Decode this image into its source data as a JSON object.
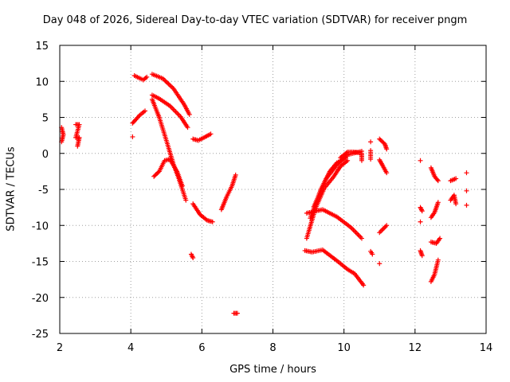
{
  "chart_data": {
    "type": "scatter",
    "title": "Day 048 of 2026, Sidereal Day-to-day VTEC variation (SDTVAR) for receiver pngm",
    "xlabel": "GPS time / hours",
    "ylabel": "SDTVAR / TECUs",
    "xlim": [
      2,
      14
    ],
    "ylim": [
      -25,
      15
    ],
    "xticks": [
      "2",
      "4",
      "6",
      "8",
      "10",
      "12",
      "14"
    ],
    "yticks": [
      "15",
      "10",
      "5",
      "0",
      "-5",
      "-10",
      "-15",
      "-20",
      "-25"
    ],
    "grid": true,
    "marker": "+",
    "color": "#ff0000",
    "segments": [
      [
        [
          2.05,
          3.6
        ],
        [
          2.1,
          2.6
        ],
        [
          2.05,
          1.6
        ]
      ],
      [
        [
          2.45,
          4.0
        ],
        [
          2.55,
          4.0
        ],
        [
          2.45,
          2.2
        ],
        [
          2.55,
          2.2
        ],
        [
          2.5,
          1.0
        ]
      ],
      [
        [
          4.05,
          2.3
        ]
      ],
      [
        [
          4.05,
          4.2
        ],
        [
          4.25,
          5.3
        ],
        [
          4.4,
          5.9
        ]
      ],
      [
        [
          4.1,
          10.8
        ],
        [
          4.35,
          10.2
        ],
        [
          4.45,
          10.6
        ]
      ],
      [
        [
          4.6,
          11.0
        ],
        [
          4.9,
          10.4
        ],
        [
          5.2,
          9.0
        ],
        [
          5.5,
          6.8
        ],
        [
          5.65,
          5.4
        ]
      ],
      [
        [
          4.6,
          8.1
        ],
        [
          4.8,
          7.6
        ],
        [
          5.1,
          6.6
        ],
        [
          5.4,
          5.1
        ],
        [
          5.6,
          3.6
        ]
      ],
      [
        [
          4.6,
          7.5
        ],
        [
          4.8,
          5.0
        ],
        [
          5.0,
          1.8
        ],
        [
          5.2,
          -1.5
        ],
        [
          5.35,
          -3.5
        ],
        [
          5.55,
          -6.5
        ]
      ],
      [
        [
          4.65,
          -3.2
        ],
        [
          4.8,
          -2.5
        ],
        [
          4.95,
          -1.0
        ],
        [
          5.1,
          -0.8
        ],
        [
          5.3,
          -2.5
        ],
        [
          5.45,
          -4.5
        ]
      ],
      [
        [
          5.7,
          -14.0
        ],
        [
          5.75,
          -14.5
        ]
      ],
      [
        [
          5.75,
          2.0
        ],
        [
          5.9,
          1.8
        ],
        [
          6.1,
          2.3
        ],
        [
          6.25,
          2.7
        ]
      ],
      [
        [
          5.75,
          -7.0
        ],
        [
          5.95,
          -8.5
        ],
        [
          6.15,
          -9.3
        ],
        [
          6.3,
          -9.5
        ]
      ],
      [
        [
          6.55,
          -7.8
        ],
        [
          6.7,
          -6.0
        ],
        [
          6.85,
          -4.5
        ],
        [
          6.95,
          -3.0
        ]
      ],
      [
        [
          6.9,
          -22.2
        ],
        [
          7.0,
          -22.2
        ]
      ],
      [
        [
          8.9,
          -13.5
        ],
        [
          9.1,
          -13.7
        ],
        [
          9.4,
          -13.4
        ],
        [
          9.8,
          -14.9
        ],
        [
          10.1,
          -16.1
        ],
        [
          10.3,
          -16.7
        ],
        [
          10.55,
          -18.3
        ]
      ],
      [
        [
          8.95,
          -8.3
        ],
        [
          9.2,
          -8.0
        ],
        [
          9.4,
          -7.8
        ],
        [
          9.8,
          -8.8
        ],
        [
          10.2,
          -10.3
        ],
        [
          10.5,
          -11.8
        ]
      ],
      [
        [
          8.95,
          -11.8
        ],
        [
          9.2,
          -7.6
        ],
        [
          9.45,
          -4.8
        ],
        [
          9.7,
          -3.3
        ],
        [
          9.9,
          -1.8
        ],
        [
          10.1,
          -1.0
        ]
      ],
      [
        [
          9.05,
          -9.0
        ],
        [
          9.35,
          -5.0
        ],
        [
          9.6,
          -2.5
        ],
        [
          9.8,
          -1.3
        ],
        [
          10.05,
          -0.6
        ]
      ],
      [
        [
          9.15,
          -7.4
        ],
        [
          9.5,
          -3.5
        ],
        [
          9.8,
          -1.6
        ],
        [
          10.1,
          -0.2
        ],
        [
          10.5,
          0.3
        ]
      ],
      [
        [
          9.9,
          -0.6
        ],
        [
          10.1,
          0.2
        ],
        [
          10.3,
          0.2
        ],
        [
          10.5,
          0.0
        ],
        [
          10.5,
          -1.0
        ]
      ],
      [
        [
          10.75,
          1.6
        ]
      ],
      [
        [
          10.75,
          0.4
        ],
        [
          10.75,
          -0.8
        ]
      ],
      [
        [
          10.75,
          -13.6
        ],
        [
          10.8,
          -14.0
        ]
      ],
      [
        [
          11.0,
          -15.3
        ]
      ],
      [
        [
          11.0,
          2.0
        ],
        [
          11.15,
          1.3
        ],
        [
          11.2,
          0.6
        ]
      ],
      [
        [
          11.0,
          -0.9
        ],
        [
          11.1,
          -1.8
        ],
        [
          11.2,
          -2.7
        ]
      ],
      [
        [
          11.0,
          -11.0
        ],
        [
          11.2,
          -10.0
        ]
      ],
      [
        [
          12.15,
          -1.0
        ]
      ],
      [
        [
          12.15,
          -7.5
        ],
        [
          12.2,
          -8.0
        ]
      ],
      [
        [
          12.15,
          -9.5
        ]
      ],
      [
        [
          12.15,
          -13.5
        ],
        [
          12.2,
          -14.2
        ]
      ],
      [
        [
          12.45,
          -2.0
        ],
        [
          12.55,
          -3.2
        ],
        [
          12.65,
          -3.8
        ]
      ],
      [
        [
          12.45,
          -8.9
        ],
        [
          12.55,
          -8.2
        ],
        [
          12.65,
          -6.8
        ]
      ],
      [
        [
          12.45,
          -12.3
        ],
        [
          12.6,
          -12.5
        ],
        [
          12.7,
          -11.8
        ]
      ],
      [
        [
          12.45,
          -17.8
        ],
        [
          12.55,
          -16.8
        ],
        [
          12.65,
          -14.8
        ]
      ],
      [
        [
          13.0,
          -3.8
        ],
        [
          13.15,
          -3.5
        ]
      ],
      [
        [
          13.0,
          -6.5
        ],
        [
          13.1,
          -5.8
        ],
        [
          13.15,
          -7.0
        ]
      ],
      [
        [
          13.45,
          -2.7
        ]
      ],
      [
        [
          13.45,
          -5.2
        ]
      ],
      [
        [
          13.45,
          -7.2
        ]
      ]
    ]
  }
}
